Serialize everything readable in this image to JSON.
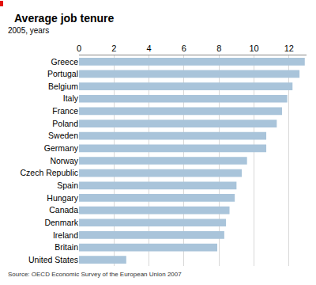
{
  "chart_data": {
    "type": "bar",
    "orientation": "horizontal",
    "title": "Average job tenure",
    "subtitle": "2005, years",
    "source": "Source: OECD Economic Survey of the European Union 2007",
    "categories": [
      "Greece",
      "Portugal",
      "Belgium",
      "Italy",
      "France",
      "Poland",
      "Sweden",
      "Germany",
      "Norway",
      "Czech Republic",
      "Spain",
      "Hungary",
      "Canada",
      "Denmark",
      "Ireland",
      "Britain",
      "United States"
    ],
    "values": [
      12.9,
      12.6,
      12.2,
      11.9,
      11.6,
      11.3,
      10.7,
      10.7,
      9.6,
      9.3,
      9.0,
      8.9,
      8.6,
      8.4,
      8.3,
      7.9,
      2.7
    ],
    "color": "#a9c4da",
    "xlim": [
      0,
      13
    ],
    "xticks": [
      0,
      2,
      4,
      6,
      8,
      10,
      12
    ],
    "grid": true
  }
}
